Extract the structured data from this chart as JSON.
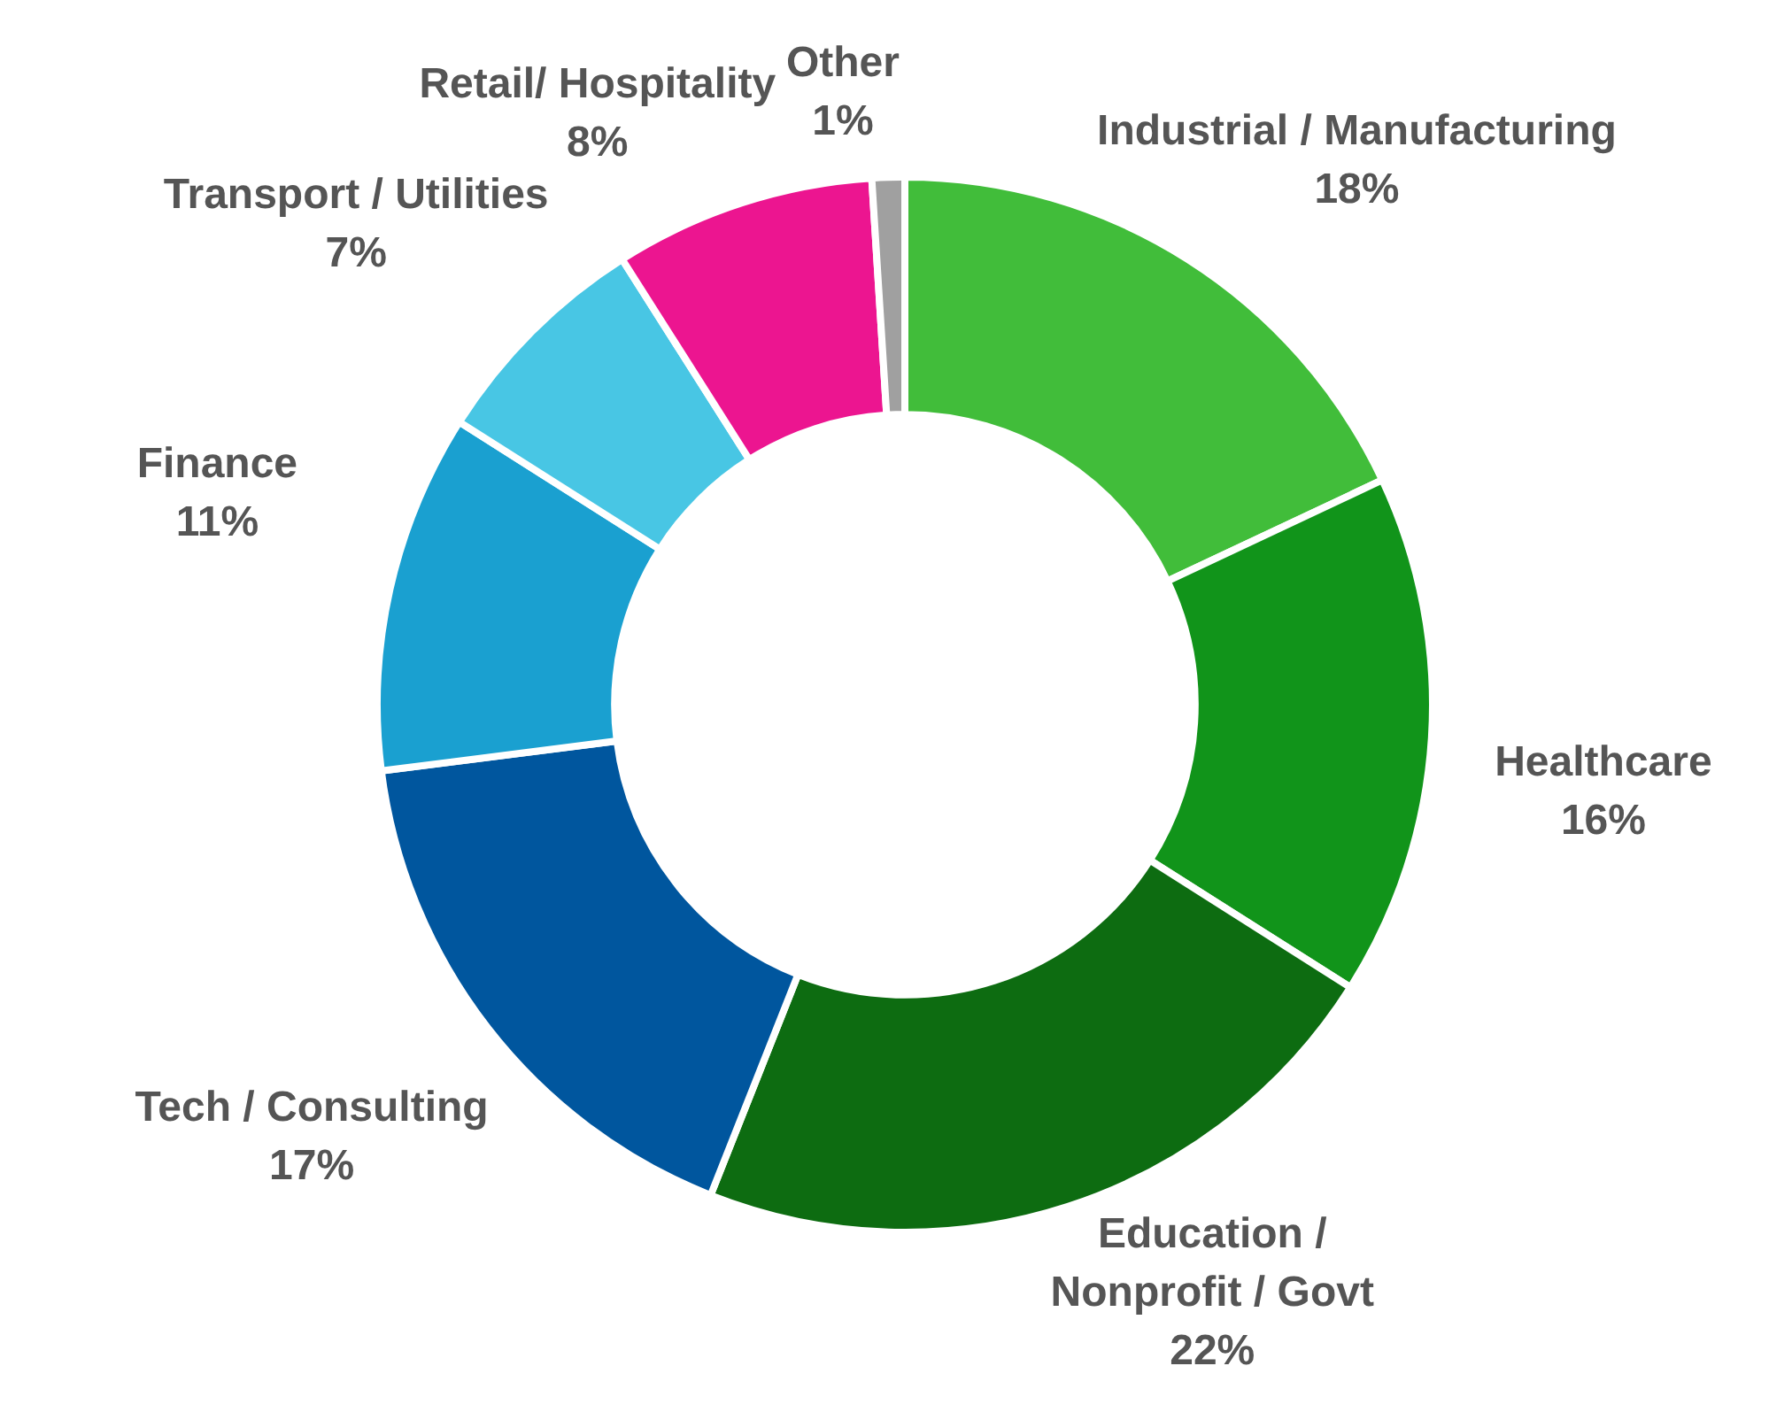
{
  "chart_data": {
    "type": "donut",
    "categories": [
      "Industrial / Manufacturing",
      "Healthcare",
      "Education / Nonprofit / Govt",
      "Tech / Consulting",
      "Finance",
      "Transport / Utilities",
      "Retail/ Hospitality",
      "Other"
    ],
    "values": [
      18,
      16,
      22,
      17,
      11,
      7,
      8,
      1
    ],
    "value_labels": [
      "18%",
      "16%",
      "22%",
      "17%",
      "11%",
      "7%",
      "8%",
      "1%"
    ],
    "colors": [
      "#41bd3a",
      "#11941a",
      "#0d6c11",
      "#00569e",
      "#1aa0d0",
      "#48c6e4",
      "#ec1590",
      "#a0a0a0"
    ],
    "legend": false
  }
}
